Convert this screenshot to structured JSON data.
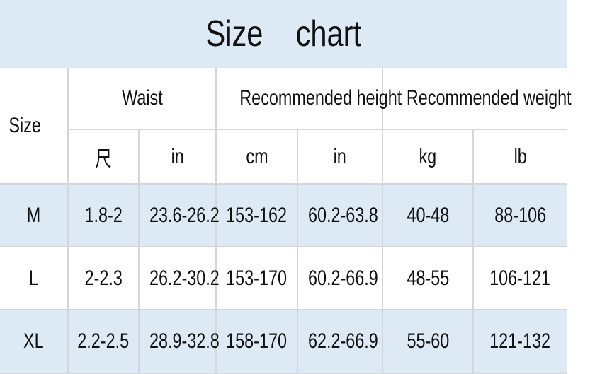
{
  "title": "Size    chart",
  "headers": {
    "size": "Size",
    "waist": "Waist",
    "height": "Recommended height",
    "weight": "Recommended weight",
    "units": [
      "尺",
      "in",
      "cm",
      "in",
      "kg",
      "lb"
    ]
  },
  "rows": [
    {
      "size": "M",
      "values": [
        "1.8-2",
        "23.6-26.2",
        "153-162",
        "60.2-63.8",
        "40-48",
        "88-106"
      ]
    },
    {
      "size": "L",
      "values": [
        "2-2.3",
        "26.2-30.2",
        "153-170",
        "60.2-66.9",
        "48-55",
        "106-121"
      ]
    },
    {
      "size": "XL",
      "values": [
        "2.2-2.5",
        "28.9-32.8",
        "158-170",
        "62.2-66.9",
        "55-60",
        "121-132"
      ]
    }
  ],
  "colors": {
    "band": "#dde9f5",
    "grid": "#d4d6d9"
  }
}
